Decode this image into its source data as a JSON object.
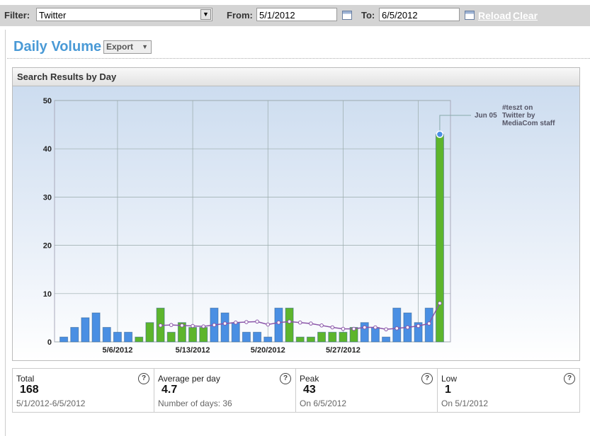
{
  "toolbar": {
    "filter_label": "Filter:",
    "filter_value": "Twitter",
    "from_label": "From:",
    "from_value": "5/1/2012",
    "to_label": "To:",
    "to_value": "6/5/2012",
    "reload": "Reload",
    "clear": "Clear"
  },
  "header": {
    "title": "Daily Volume",
    "export": "Export"
  },
  "panel_title": "Search Results by Day",
  "chart_data": {
    "type": "bar",
    "categories": [
      null,
      null,
      null,
      null,
      null,
      "5/6/2012",
      null,
      null,
      null,
      null,
      null,
      null,
      "5/13/2012",
      null,
      null,
      null,
      null,
      null,
      null,
      "5/20/2012",
      null,
      null,
      null,
      null,
      null,
      null,
      "5/27/2012",
      null,
      null,
      null,
      null,
      null,
      null,
      null,
      null,
      null
    ],
    "values": [
      1,
      3,
      5,
      6,
      3,
      2,
      2,
      1,
      4,
      7,
      2,
      4,
      3,
      3,
      7,
      6,
      4,
      2,
      2,
      1,
      7,
      7,
      1,
      1,
      2,
      2,
      2,
      3,
      4,
      3,
      1,
      7,
      6,
      4,
      7,
      43
    ],
    "colors": [
      "#4a8fe3",
      "#4a8fe3",
      "#4a8fe3",
      "#4a8fe3",
      "#4a8fe3",
      "#4a8fe3",
      "#4a8fe3",
      "#5db52c",
      "#5db52c",
      "#5db52c",
      "#5db52c",
      "#5db52c",
      "#5db52c",
      "#5db52c",
      "#4a8fe3",
      "#4a8fe3",
      "#4a8fe3",
      "#4a8fe3",
      "#4a8fe3",
      "#4a8fe3",
      "#4a8fe3",
      "#5db52c",
      "#5db52c",
      "#5db52c",
      "#5db52c",
      "#5db52c",
      "#5db52c",
      "#5db52c",
      "#4a8fe3",
      "#4a8fe3",
      "#4a8fe3",
      "#4a8fe3",
      "#4a8fe3",
      "#4a8fe3",
      "#4a8fe3",
      "#5db52c"
    ],
    "avg_line": {
      "color": "#8a55a8",
      "values": [
        null,
        null,
        null,
        null,
        null,
        null,
        null,
        null,
        null,
        3.4,
        3.5,
        3.4,
        3.3,
        3.2,
        3.5,
        3.8,
        4.0,
        4.1,
        4.2,
        3.6,
        4.0,
        4.2,
        4.0,
        3.8,
        3.4,
        3.0,
        2.7,
        2.7,
        3.0,
        3.0,
        2.6,
        2.8,
        3.0,
        3.3,
        3.8,
        8.0
      ]
    },
    "ylim": [
      0,
      50
    ],
    "yticks": [
      0,
      10,
      20,
      30,
      40,
      50
    ],
    "grid": true,
    "annotation": {
      "date": "Jun 05",
      "lines": [
        "#teszt on",
        "Twitter by",
        "MediaCom staff"
      ]
    }
  },
  "stats": [
    {
      "label": "Total",
      "value": 168,
      "note": "5/1/2012-6/5/2012"
    },
    {
      "label": "Average per day",
      "value": 4.7,
      "note": "Number of days: 36"
    },
    {
      "label": "Peak",
      "value": 43,
      "note": "On 6/5/2012"
    },
    {
      "label": "Low",
      "value": 1,
      "note": "On 5/1/2012"
    }
  ]
}
